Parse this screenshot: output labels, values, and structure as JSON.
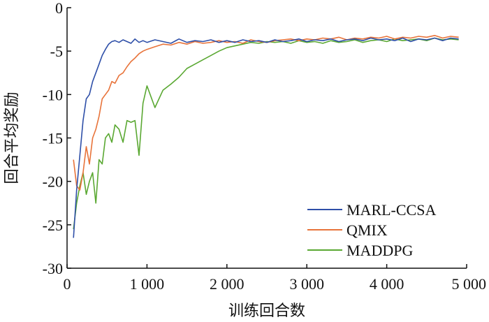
{
  "chart_data": {
    "type": "line",
    "xlabel": "训练回合数",
    "ylabel": "回合平均奖励",
    "xlim": [
      0,
      5000
    ],
    "ylim": [
      -30,
      0
    ],
    "x_ticks": [
      0,
      1000,
      2000,
      3000,
      4000,
      5000
    ],
    "x_tick_labels": [
      "0",
      "1 000",
      "2 000",
      "3 000",
      "4 000",
      "5 000"
    ],
    "y_ticks": [
      0,
      -5,
      -10,
      -15,
      -20,
      -25,
      -30
    ],
    "y_tick_labels": [
      "0",
      "-5",
      "-10",
      "-15",
      "-20",
      "-25",
      "-30"
    ],
    "grid": false,
    "legend_position": "bottom-right",
    "series": [
      {
        "name": "MARL-CCSA",
        "color": "#2e4fa8",
        "x": [
          80,
          120,
          160,
          200,
          240,
          280,
          320,
          360,
          400,
          440,
          480,
          520,
          560,
          600,
          650,
          700,
          750,
          800,
          850,
          900,
          950,
          1000,
          1100,
          1200,
          1300,
          1400,
          1500,
          1600,
          1700,
          1800,
          1900,
          2000,
          2100,
          2200,
          2300,
          2400,
          2500,
          2600,
          2700,
          2800,
          2900,
          3000,
          3100,
          3200,
          3300,
          3400,
          3500,
          3600,
          3700,
          3800,
          3900,
          4000,
          4100,
          4200,
          4300,
          4400,
          4500,
          4600,
          4700,
          4800,
          4900
        ],
        "y": [
          -26.5,
          -21,
          -17,
          -13,
          -10.5,
          -10,
          -8.5,
          -7.5,
          -6.5,
          -5.5,
          -4.8,
          -4.2,
          -3.9,
          -3.8,
          -4.0,
          -3.7,
          -3.9,
          -4.1,
          -3.6,
          -4.0,
          -3.8,
          -4.0,
          -3.7,
          -3.9,
          -4.1,
          -3.6,
          -4.0,
          -3.8,
          -3.9,
          -3.7,
          -4.0,
          -3.8,
          -4.0,
          -3.7,
          -3.9,
          -3.8,
          -4.0,
          -3.7,
          -3.9,
          -3.8,
          -3.6,
          -3.9,
          -3.7,
          -3.8,
          -3.6,
          -3.9,
          -3.7,
          -3.6,
          -3.8,
          -3.5,
          -3.7,
          -3.6,
          -3.8,
          -3.5,
          -3.9,
          -3.6,
          -3.7,
          -3.5,
          -3.8,
          -3.5,
          -3.6
        ]
      },
      {
        "name": "QMIX",
        "color": "#e8733a",
        "x": [
          80,
          120,
          160,
          200,
          240,
          280,
          320,
          360,
          400,
          440,
          480,
          520,
          560,
          600,
          650,
          700,
          750,
          800,
          850,
          900,
          950,
          1000,
          1100,
          1200,
          1300,
          1400,
          1500,
          1600,
          1700,
          1800,
          1900,
          2000,
          2100,
          2200,
          2300,
          2400,
          2500,
          2600,
          2700,
          2800,
          2900,
          3000,
          3100,
          3200,
          3300,
          3400,
          3500,
          3600,
          3700,
          3800,
          3900,
          4000,
          4100,
          4200,
          4300,
          4400,
          4500,
          4600,
          4700,
          4800,
          4900
        ],
        "y": [
          -17.5,
          -20.5,
          -21,
          -19,
          -16,
          -18,
          -15,
          -14,
          -12.5,
          -10.5,
          -10,
          -9.5,
          -8.5,
          -8.7,
          -7.8,
          -7.5,
          -6.8,
          -6.2,
          -5.8,
          -5.3,
          -5.0,
          -4.8,
          -4.5,
          -4.2,
          -4.3,
          -4.0,
          -4.2,
          -3.9,
          -4.1,
          -4.0,
          -3.8,
          -4.0,
          -3.9,
          -4.1,
          -3.7,
          -3.9,
          -4.0,
          -3.8,
          -3.7,
          -3.6,
          -3.8,
          -3.6,
          -3.7,
          -3.5,
          -3.6,
          -3.4,
          -3.7,
          -3.5,
          -3.6,
          -3.4,
          -3.5,
          -3.3,
          -3.6,
          -3.4,
          -3.5,
          -3.3,
          -3.4,
          -3.2,
          -3.5,
          -3.3,
          -3.4
        ]
      },
      {
        "name": "MADDPG",
        "color": "#5aa832",
        "x": [
          80,
          120,
          160,
          200,
          240,
          280,
          320,
          360,
          400,
          440,
          480,
          520,
          560,
          600,
          650,
          700,
          750,
          800,
          850,
          900,
          950,
          1000,
          1100,
          1200,
          1300,
          1400,
          1500,
          1600,
          1700,
          1800,
          1900,
          2000,
          2100,
          2200,
          2300,
          2400,
          2500,
          2600,
          2700,
          2800,
          2900,
          3000,
          3100,
          3200,
          3300,
          3400,
          3500,
          3600,
          3700,
          3800,
          3900,
          4000,
          4100,
          4200,
          4300,
          4400,
          4500,
          4600,
          4700,
          4800,
          4900
        ],
        "y": [
          -25.5,
          -22.5,
          -20.5,
          -19,
          -21.5,
          -20,
          -19,
          -22.5,
          -17.5,
          -18,
          -15,
          -14.5,
          -15.5,
          -13.5,
          -14,
          -15.5,
          -13,
          -13.2,
          -13,
          -17,
          -11,
          -9,
          -11.5,
          -9.5,
          -8.8,
          -8,
          -7,
          -6.5,
          -6,
          -5.5,
          -5.0,
          -4.6,
          -4.4,
          -4.2,
          -4.0,
          -4.1,
          -3.9,
          -4.0,
          -3.9,
          -4.1,
          -3.8,
          -4.0,
          -3.9,
          -4.1,
          -3.8,
          -4.0,
          -3.9,
          -3.7,
          -4.0,
          -3.8,
          -3.7,
          -3.9,
          -3.6,
          -3.8,
          -3.7,
          -3.6,
          -3.8,
          -3.5,
          -3.7,
          -3.6,
          -3.7
        ]
      }
    ]
  }
}
